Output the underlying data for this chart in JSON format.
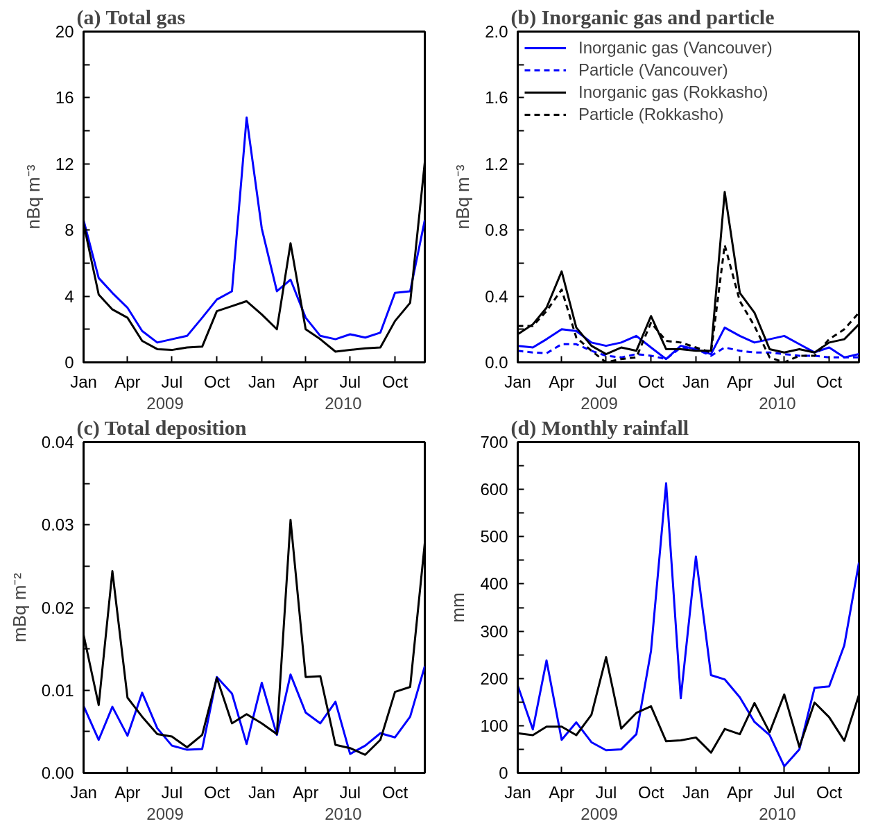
{
  "chart_data": [
    {
      "type": "line",
      "title": "(a) Total gas",
      "ylabel": "nBq m⁻³",
      "x": [
        "2009-01",
        "2009-02",
        "2009-03",
        "2009-04",
        "2009-05",
        "2009-06",
        "2009-07",
        "2009-08",
        "2009-09",
        "2009-10",
        "2009-11",
        "2009-12",
        "2010-01",
        "2010-02",
        "2010-03",
        "2010-04",
        "2010-05",
        "2010-06",
        "2010-07",
        "2010-08",
        "2010-09",
        "2010-10",
        "2010-11",
        "2010-12"
      ],
      "xlim": [
        "2009-01",
        "2010-12"
      ],
      "xticks": [
        {
          "value": "2009-01",
          "label": "Jan"
        },
        {
          "value": "2009-04",
          "label": "Apr"
        },
        {
          "value": "2009-07",
          "label": "Jul"
        },
        {
          "value": "2009-10",
          "label": "Oct"
        },
        {
          "value": "2010-01",
          "label": "Jan"
        },
        {
          "value": "2010-04",
          "label": "Apr"
        },
        {
          "value": "2010-07",
          "label": "Jul"
        },
        {
          "value": "2010-10",
          "label": "Oct"
        }
      ],
      "ylim": [
        0,
        20
      ],
      "yticks": [
        0,
        {
          "value": 2,
          "label": null
        },
        4,
        {
          "value": 6,
          "label": null
        },
        8,
        {
          "value": 10,
          "label": null
        },
        12,
        {
          "value": 14,
          "label": null
        },
        16,
        {
          "value": 18,
          "label": null
        },
        20
      ],
      "grid": false,
      "legend": false,
      "series": [
        {
          "color": "#0000ff",
          "values": [
            8.6,
            5.1,
            4.2,
            3.3,
            1.9,
            1.2,
            1.4,
            1.6,
            2.7,
            3.8,
            4.3,
            14.8,
            8.1,
            4.3,
            5.0,
            2.7,
            1.6,
            1.4,
            1.7,
            1.5,
            1.8,
            4.2,
            4.3,
            8.6
          ]
        },
        {
          "color": "#000000",
          "values": [
            8.4,
            4.1,
            3.2,
            2.7,
            1.3,
            0.8,
            0.75,
            0.9,
            0.95,
            3.1,
            3.4,
            3.7,
            2.9,
            2.0,
            7.2,
            2.0,
            1.4,
            0.65,
            0.75,
            0.85,
            0.9,
            2.5,
            3.6,
            12.1
          ]
        }
      ],
      "annotations": [
        "2009",
        "2010"
      ]
    },
    {
      "type": "line",
      "title": "(b) Inorganic gas and particle",
      "ylabel": "nBq m⁻³",
      "x": [
        "2009-01",
        "2009-02",
        "2009-03",
        "2009-04",
        "2009-05",
        "2009-06",
        "2009-07",
        "2009-08",
        "2009-09",
        "2009-10",
        "2009-11",
        "2009-12",
        "2010-01",
        "2010-02",
        "2010-03",
        "2010-04",
        "2010-05",
        "2010-06",
        "2010-07",
        "2010-08",
        "2010-09",
        "2010-10",
        "2010-11",
        "2010-12"
      ],
      "xlim": [
        "2009-01",
        "2010-12"
      ],
      "xticks": [
        {
          "value": "2009-01",
          "label": "Jan"
        },
        {
          "value": "2009-04",
          "label": "Apr"
        },
        {
          "value": "2009-07",
          "label": "Jul"
        },
        {
          "value": "2009-10",
          "label": "Oct"
        },
        {
          "value": "2010-01",
          "label": "Jan"
        },
        {
          "value": "2010-04",
          "label": "Apr"
        },
        {
          "value": "2010-07",
          "label": "Jul"
        },
        {
          "value": "2010-10",
          "label": "Oct"
        }
      ],
      "ylim": [
        0,
        2.0
      ],
      "yticks": [
        {
          "value": 0,
          "label": "0.0"
        },
        {
          "value": 0.2,
          "label": null
        },
        0.4,
        {
          "value": 0.6,
          "label": null
        },
        0.8,
        {
          "value": 1.0,
          "label": null
        },
        1.2,
        {
          "value": 1.4,
          "label": null
        },
        1.6,
        {
          "value": 1.8,
          "label": null
        },
        {
          "value": 2.0,
          "label": "2.0"
        }
      ],
      "grid": false,
      "legend": "top left",
      "series": [
        {
          "name": "Inorganic gas (Vancouver)",
          "color": "#0000ff",
          "line_style": "solid",
          "values": [
            0.1,
            0.09,
            0.14,
            0.2,
            0.19,
            0.12,
            0.1,
            0.12,
            0.16,
            0.09,
            0.02,
            0.1,
            0.08,
            0.05,
            0.21,
            0.16,
            0.12,
            0.14,
            0.16,
            0.11,
            0.06,
            0.09,
            0.03,
            0.05
          ]
        },
        {
          "name": "Particle (Vancouver)",
          "color": "#0000ff",
          "line_style": "dashed",
          "values": [
            0.07,
            0.06,
            0.055,
            0.11,
            0.11,
            0.07,
            0.04,
            0.03,
            0.05,
            0.04,
            0.02,
            0.09,
            0.08,
            0.04,
            0.09,
            0.07,
            0.06,
            0.06,
            0.05,
            0.04,
            0.04,
            0.03,
            0.03,
            0.03
          ]
        },
        {
          "name": "Inorganic gas (Rokkasho)",
          "color": "#000000",
          "line_style": "solid",
          "values": [
            0.17,
            0.23,
            0.33,
            0.55,
            0.21,
            0.1,
            0.05,
            0.09,
            0.07,
            0.28,
            0.08,
            0.08,
            0.07,
            0.07,
            1.03,
            0.42,
            0.3,
            0.08,
            0.06,
            0.08,
            0.06,
            0.12,
            0.14,
            0.23
          ]
        },
        {
          "name": "Particle (Rokkasho)",
          "color": "#000000",
          "line_style": "dashed",
          "values": [
            0.22,
            0.22,
            0.31,
            0.44,
            0.15,
            0.07,
            0.0,
            0.02,
            0.03,
            0.24,
            0.13,
            0.12,
            0.09,
            0.06,
            0.71,
            0.37,
            0.22,
            0.03,
            0.0,
            0.04,
            0.04,
            0.14,
            0.2,
            0.3
          ]
        }
      ],
      "annotations": [
        "2009",
        "2010"
      ]
    },
    {
      "type": "line",
      "title": "(c) Total deposition",
      "ylabel": "mBq m⁻²",
      "x": [
        "2009-01",
        "2009-02",
        "2009-03",
        "2009-04",
        "2009-05",
        "2009-06",
        "2009-07",
        "2009-08",
        "2009-09",
        "2009-10",
        "2009-11",
        "2009-12",
        "2010-01",
        "2010-02",
        "2010-03",
        "2010-04",
        "2010-05",
        "2010-06",
        "2010-07",
        "2010-08",
        "2010-09",
        "2010-10",
        "2010-11",
        "2010-12"
      ],
      "xlim": [
        "2009-01",
        "2010-12"
      ],
      "xticks": [
        {
          "value": "2009-01",
          "label": "Jan"
        },
        {
          "value": "2009-04",
          "label": "Apr"
        },
        {
          "value": "2009-07",
          "label": "Jul"
        },
        {
          "value": "2009-10",
          "label": "Oct"
        },
        {
          "value": "2010-01",
          "label": "Jan"
        },
        {
          "value": "2010-04",
          "label": "Apr"
        },
        {
          "value": "2010-07",
          "label": "Jul"
        },
        {
          "value": "2010-10",
          "label": "Oct"
        }
      ],
      "ylim": [
        0,
        0.04
      ],
      "yticks": [
        {
          "value": 0,
          "label": "0.00"
        },
        {
          "value": 0.005,
          "label": null
        },
        0.01,
        {
          "value": 0.015,
          "label": null
        },
        0.02,
        {
          "value": 0.025,
          "label": null
        },
        0.03,
        {
          "value": 0.035,
          "label": null
        },
        0.04
      ],
      "grid": false,
      "legend": false,
      "series": [
        {
          "color": "#0000ff",
          "values": [
            0.0081,
            0.004,
            0.008,
            0.0045,
            0.0097,
            0.0054,
            0.0033,
            0.0028,
            0.0029,
            0.0116,
            0.0096,
            0.0035,
            0.0109,
            0.0046,
            0.0119,
            0.0073,
            0.006,
            0.0086,
            0.0023,
            0.0033,
            0.0048,
            0.0043,
            0.0068,
            0.0129
          ]
        },
        {
          "color": "#000000",
          "values": [
            0.0167,
            0.0082,
            0.0244,
            0.0091,
            0.0068,
            0.0047,
            0.0044,
            0.0031,
            0.0046,
            0.0115,
            0.006,
            0.0071,
            0.006,
            0.0047,
            0.0306,
            0.0116,
            0.0117,
            0.0034,
            0.003,
            0.0022,
            0.004,
            0.0098,
            0.0104,
            0.0278
          ]
        }
      ],
      "annotations": [
        "2009",
        "2010"
      ]
    },
    {
      "type": "line",
      "title": "(d) Monthly rainfall",
      "ylabel": "mm",
      "x": [
        "2009-01",
        "2009-02",
        "2009-03",
        "2009-04",
        "2009-05",
        "2009-06",
        "2009-07",
        "2009-08",
        "2009-09",
        "2009-10",
        "2009-11",
        "2009-12",
        "2010-01",
        "2010-02",
        "2010-03",
        "2010-04",
        "2010-05",
        "2010-06",
        "2010-07",
        "2010-08",
        "2010-09",
        "2010-10",
        "2010-11",
        "2010-12"
      ],
      "xlim": [
        "2009-01",
        "2010-12"
      ],
      "xticks": [
        {
          "value": "2009-01",
          "label": "Jan"
        },
        {
          "value": "2009-04",
          "label": "Apr"
        },
        {
          "value": "2009-07",
          "label": "Jul"
        },
        {
          "value": "2009-10",
          "label": "Oct"
        },
        {
          "value": "2010-01",
          "label": "Jan"
        },
        {
          "value": "2010-04",
          "label": "Apr"
        },
        {
          "value": "2010-07",
          "label": "Jul"
        },
        {
          "value": "2010-10",
          "label": "Oct"
        }
      ],
      "ylim": [
        0,
        700
      ],
      "yticks": [
        0,
        {
          "value": 50,
          "label": null
        },
        100,
        {
          "value": 150,
          "label": null
        },
        200,
        {
          "value": 250,
          "label": null
        },
        300,
        {
          "value": 350,
          "label": null
        },
        400,
        {
          "value": 450,
          "label": null
        },
        500,
        {
          "value": 550,
          "label": null
        },
        600,
        {
          "value": 650,
          "label": null
        },
        700
      ],
      "grid": false,
      "legend": false,
      "series": [
        {
          "color": "#0000ff",
          "values": [
            185,
            92,
            238,
            70,
            107,
            65,
            48,
            50,
            82,
            258,
            613,
            158,
            458,
            207,
            198,
            160,
            108,
            80,
            14,
            50,
            180,
            183,
            270,
            445
          ]
        },
        {
          "color": "#000000",
          "values": [
            84,
            80,
            98,
            98,
            80,
            123,
            245,
            94,
            127,
            141,
            67,
            69,
            75,
            43,
            93,
            82,
            148,
            86,
            166,
            55,
            149,
            118,
            68,
            165
          ]
        }
      ],
      "annotations": [
        "2009",
        "2010"
      ]
    }
  ]
}
